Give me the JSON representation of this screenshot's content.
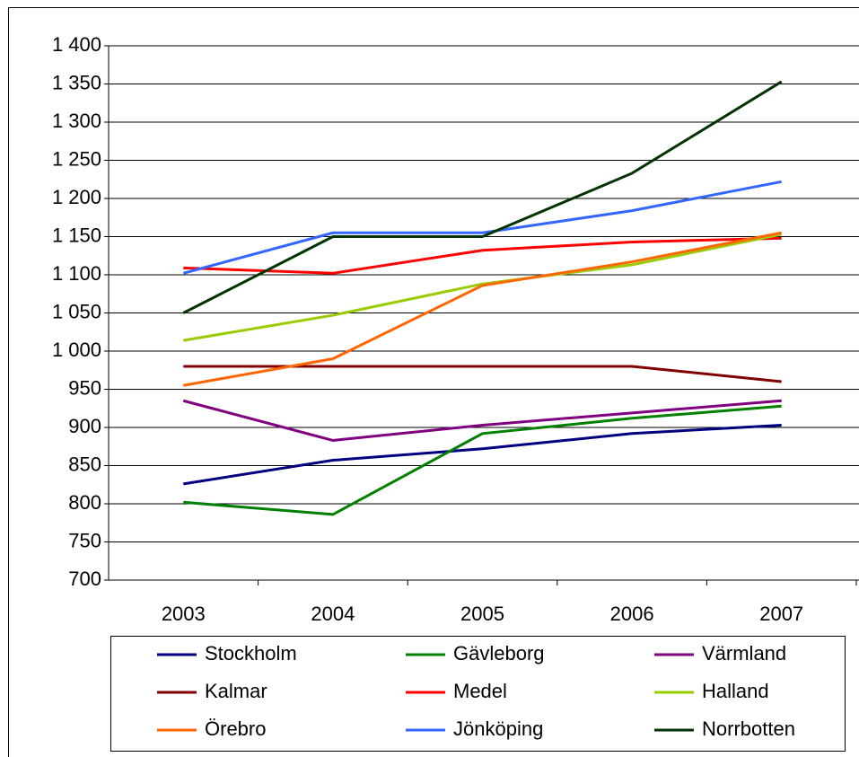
{
  "chart_data": {
    "type": "line",
    "categories": [
      "2003",
      "2004",
      "2005",
      "2006",
      "2007"
    ],
    "ylim": [
      700,
      1400
    ],
    "yticks": [
      700,
      750,
      800,
      850,
      900,
      950,
      {
        "value": 1000,
        "label": "1 000"
      },
      {
        "value": 1050,
        "label": "1 050"
      },
      {
        "value": 1100,
        "label": "1 100"
      },
      {
        "value": 1150,
        "label": "1 150"
      },
      {
        "value": 1200,
        "label": "1 200"
      },
      {
        "value": 1250,
        "label": "1 250"
      },
      {
        "value": 1300,
        "label": "1 300"
      },
      {
        "value": 1350,
        "label": "1 350"
      },
      {
        "value": 1400,
        "label": "1 400"
      }
    ],
    "grid": true,
    "legend": "bottom",
    "series": [
      {
        "name": "Stockholm",
        "color": "#000080",
        "values": [
          826,
          857,
          872,
          892,
          903
        ]
      },
      {
        "name": "Gävleborg",
        "color": "#008000",
        "values": [
          802,
          786,
          892,
          912,
          928
        ]
      },
      {
        "name": "Värmland",
        "color": "#800080",
        "values": [
          935,
          883,
          903,
          919,
          935
        ]
      },
      {
        "name": "Kalmar",
        "color": "#800000",
        "values": [
          980,
          980,
          980,
          980,
          960
        ]
      },
      {
        "name": "Medel",
        "color": "#ff0000",
        "values": [
          1109,
          1102,
          1132,
          1143,
          1148
        ]
      },
      {
        "name": "Halland",
        "color": "#99cc00",
        "values": [
          1014,
          1047,
          1088,
          1113,
          1153
        ]
      },
      {
        "name": "Örebro",
        "color": "#ff6600",
        "values": [
          955,
          990,
          1086,
          1117,
          1155
        ]
      },
      {
        "name": "Jönköping",
        "color": "#3366ff",
        "values": [
          1102,
          1155,
          1155,
          1184,
          1222
        ]
      },
      {
        "name": "Norrbotten",
        "color": "#003300",
        "values": [
          1050,
          1150,
          1150,
          1233,
          1353
        ]
      }
    ]
  }
}
